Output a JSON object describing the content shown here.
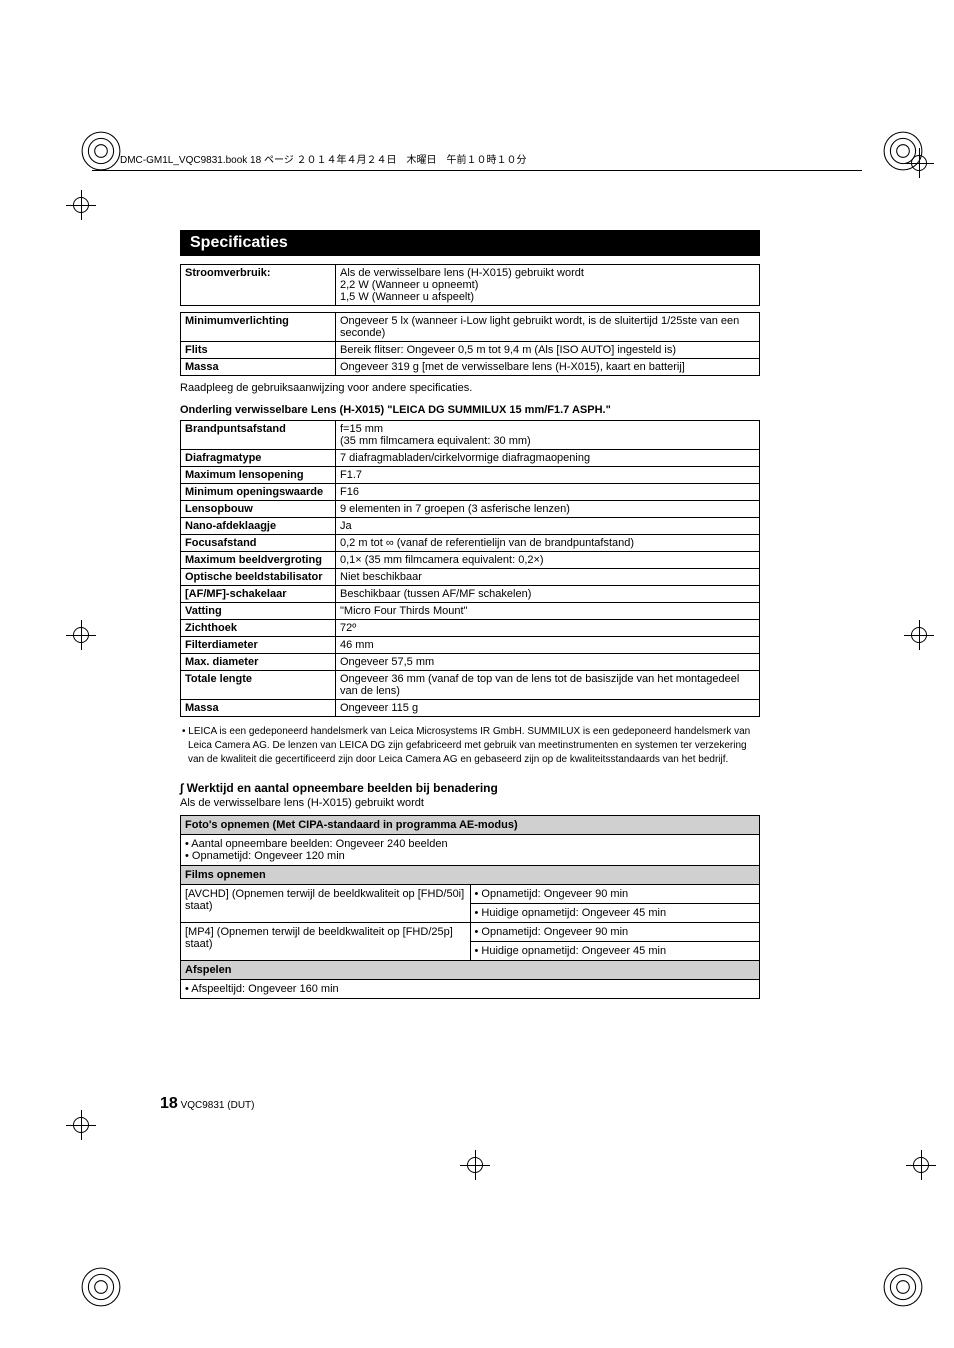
{
  "print_header": "DMC-GM1L_VQC9831.book  18 ページ  ２０１４年４月２４日　木曜日　午前１０時１０分",
  "section_title": "Specificaties",
  "table1": {
    "rows": [
      {
        "label": "Stroomverbruik:",
        "value": "Als de verwisselbare lens (H-X015) gebruikt wordt\n2,2 W (Wanneer u opneemt)\n1,5 W (Wanneer u afspeelt)"
      }
    ]
  },
  "table2": {
    "rows": [
      {
        "label": "Minimumverlichting",
        "value": "Ongeveer 5 lx (wanneer i-Low light gebruikt wordt, is de sluitertijd 1/25ste van een seconde)"
      },
      {
        "label": "Flits",
        "value": "Bereik flitser: Ongeveer 0,5 m tot 9,4 m (Als [ISO AUTO] ingesteld is)"
      },
      {
        "label": "Massa",
        "value": "Ongeveer 319 g [met de verwisselbare lens (H-X015), kaart en batterij]"
      }
    ]
  },
  "footnote1": "Raadpleeg de gebruiksaanwijzing voor andere specificaties.",
  "lens_heading": "Onderling verwisselbare Lens (H-X015) \"LEICA DG SUMMILUX 15 mm/F1.7 ASPH.\"",
  "lens_table": {
    "rows": [
      {
        "label": "Brandpuntsafstand",
        "value": "f=15 mm\n(35 mm filmcamera equivalent: 30 mm)"
      },
      {
        "label": "Diafragmatype",
        "value": "7 diafragmabladen/cirkelvormige diafragmaopening"
      },
      {
        "label": "Maximum lensopening",
        "value": "F1.7"
      },
      {
        "label": "Minimum openingswaarde",
        "value": "F16"
      },
      {
        "label": "Lensopbouw",
        "value": "9 elementen in 7 groepen (3 asferische lenzen)"
      },
      {
        "label": "Nano-afdeklaagje",
        "value": "Ja"
      },
      {
        "label": "Focusafstand",
        "value": "0,2 m tot ∞ (vanaf de referentielijn van de brandpuntafstand)"
      },
      {
        "label": "Maximum beeldvergroting",
        "value": "0,1× (35 mm filmcamera equivalent: 0,2×)"
      },
      {
        "label": "Optische beeldstabilisator",
        "value": "Niet beschikbaar"
      },
      {
        "label": "[AF/MF]-schakelaar",
        "value": "Beschikbaar (tussen AF/MF schakelen)"
      },
      {
        "label": "Vatting",
        "value": "\"Micro Four Thirds Mount\""
      },
      {
        "label": "Zichthoek",
        "value": "72º"
      },
      {
        "label": "Filterdiameter",
        "value": "46 mm"
      },
      {
        "label": "Max. diameter",
        "value": "Ongeveer 57,5 mm"
      },
      {
        "label": "Totale lengte",
        "value": "Ongeveer 36 mm (vanaf de top van de lens tot de basiszijde van het montagedeel van de lens)"
      },
      {
        "label": "Massa",
        "value": "Ongeveer 115 g"
      }
    ]
  },
  "leica_note": "• LEICA is een gedeponeerd handelsmerk van Leica Microsystems IR GmbH. SUMMILUX is een gedeponeerd handelsmerk van Leica Camera AG. De lenzen van LEICA DG zijn gefabriceerd met gebruik van meetinstrumenten en systemen ter verzekering van de kwaliteit die gecertificeerd zijn door Leica Camera AG en gebaseerd zijn op de kwaliteitsstandaards van het bedrijf.",
  "work_heading": "Werktijd en aantal opneembare beelden bij benadering",
  "work_sub": "Als de verwisselbare lens (H-X015) gebruikt wordt",
  "rec_table": {
    "photo_header": "Foto's opnemen (Met CIPA-standaard in programma AE-modus)",
    "photo_bullets": "• Aantal opneembare beelden: Ongeveer 240 beelden\n• Opnametijd: Ongeveer 120 min",
    "films_header": "Films opnemen",
    "avchd_left": "[AVCHD] (Opnemen terwijl de beeldkwaliteit op [FHD/50i] staat)",
    "avchd_r1": "• Opnametijd: Ongeveer 90 min",
    "avchd_r2": "• Huidige opnametijd: Ongeveer 45 min",
    "mp4_left": "[MP4] (Opnemen terwijl de beeldkwaliteit op [FHD/25p] staat)",
    "mp4_r1": "• Opnametijd: Ongeveer 90 min",
    "mp4_r2": "• Huidige opnametijd: Ongeveer 45 min",
    "playback_header": "Afspelen",
    "playback_body": "• Afspeeltijd: Ongeveer 160 min"
  },
  "page_number": "18",
  "page_code": "VQC9831 (DUT)"
}
